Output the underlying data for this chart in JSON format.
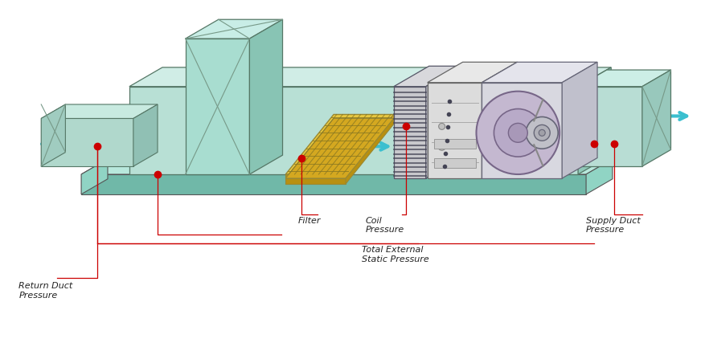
{
  "background_color": "#ffffff",
  "labels": {
    "return_duct": "Return Duct\nPressure",
    "filter": "Filter",
    "coil_pressure": "Coil\nPressure",
    "total_external": "Total External\nStatic Pressure",
    "supply_duct": "Supply Duct\nPressure"
  },
  "arrow_color": "#cc0000",
  "dot_color": "#cc0000",
  "air_arrow_color": "#3bbfcf",
  "teal_light": "#b8e8dc",
  "teal_mid": "#90d4c4",
  "teal_dark": "#70b8a8",
  "teal_face": "#a8ddd0",
  "gold_light": "#e8c840",
  "gold_mid": "#d4a820",
  "gold_dark": "#b89010",
  "gray_light": "#e0e0e0",
  "gray_mid": "#c8c8c8",
  "gray_dark": "#aaaaaa",
  "coil_color": "#b8bfc8",
  "fan_color": "#c0c8d8",
  "purple_light": "#c8b8d8",
  "purple_mid": "#a898c0"
}
